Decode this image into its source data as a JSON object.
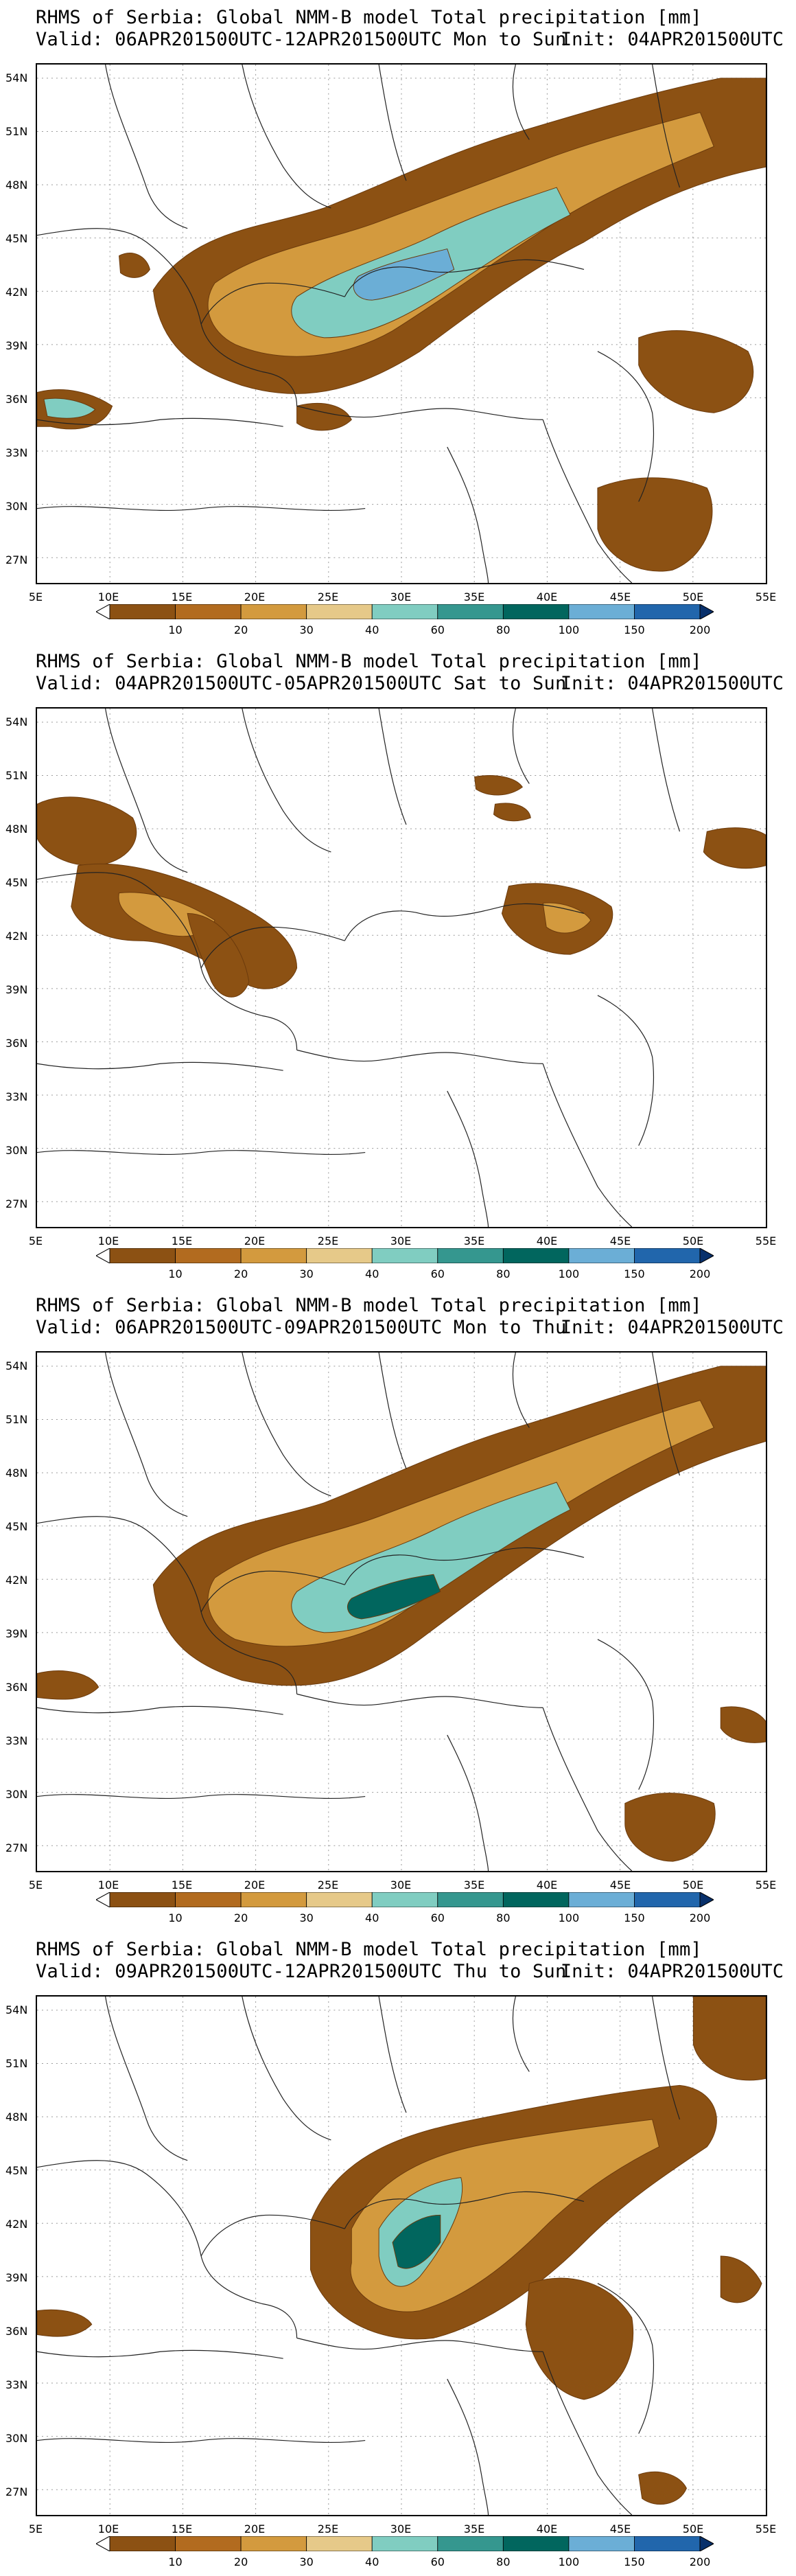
{
  "colorbar": {
    "labels": [
      "10",
      "20",
      "30",
      "40",
      "60",
      "80",
      "100",
      "150",
      "200"
    ],
    "colors": [
      "#8C5113",
      "#B26B1F",
      "#D39A3E",
      "#E6C989",
      "#80CDC1",
      "#35978F",
      "#01665E",
      "#6BAED6",
      "#2166AC",
      "#08306B"
    ]
  },
  "axes": {
    "lat_labels": [
      "54N",
      "51N",
      "48N",
      "45N",
      "42N",
      "39N",
      "36N",
      "33N",
      "30N",
      "27N"
    ],
    "lon_labels": [
      "5E",
      "10E",
      "15E",
      "20E",
      "25E",
      "30E",
      "35E",
      "40E",
      "45E",
      "50E",
      "55E"
    ]
  },
  "panels": [
    {
      "title": "RHMS of Serbia: Global NMM-B model Total precipitation [mm]",
      "valid": "Valid: 06APR201500UTC-12APR201500UTC Mon to Sun",
      "init": "Init: 04APR201500UTC"
    },
    {
      "title": "RHMS of Serbia: Global NMM-B model Total precipitation [mm]",
      "valid": "Valid: 04APR201500UTC-05APR201500UTC Sat to Sun",
      "init": "Init: 04APR201500UTC"
    },
    {
      "title": "RHMS of Serbia: Global NMM-B model Total precipitation [mm]",
      "valid": "Valid: 06APR201500UTC-09APR201500UTC Mon to Thu",
      "init": "Init: 04APR201500UTC"
    },
    {
      "title": "RHMS of Serbia: Global NMM-B model Total precipitation [mm]",
      "valid": "Valid: 09APR201500UTC-12APR201500UTC Thu to Sun",
      "init": "Init: 04APR201500UTC"
    }
  ]
}
